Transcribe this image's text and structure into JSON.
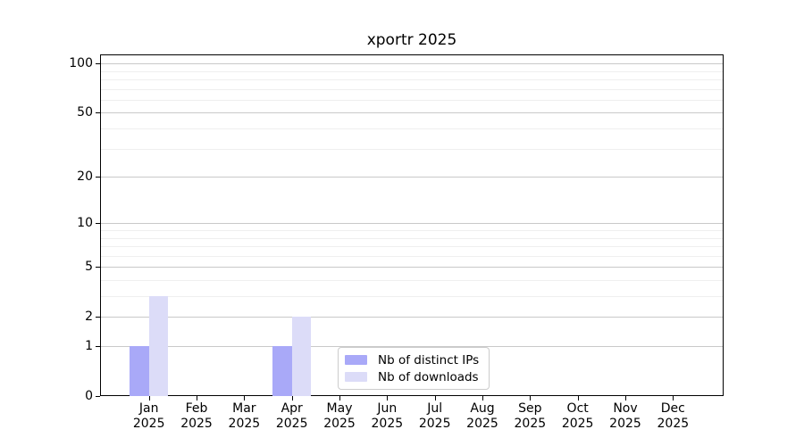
{
  "chart_data": {
    "type": "bar",
    "title": "xportr 2025",
    "categories": [
      "Jan 2025",
      "Feb 2025",
      "Mar 2025",
      "Apr 2025",
      "May 2025",
      "Jun 2025",
      "Jul 2025",
      "Aug 2025",
      "Sep 2025",
      "Oct 2025",
      "Nov 2025",
      "Dec 2025"
    ],
    "series": [
      {
        "name": "Nb of distinct IPs",
        "color": "#a9a9f8",
        "values": [
          1,
          0,
          0,
          1,
          0,
          0,
          0,
          0,
          0,
          0,
          0,
          0
        ]
      },
      {
        "name": "Nb of downloads",
        "color": "#dcdcf8",
        "values": [
          3,
          0,
          0,
          2,
          0,
          0,
          0,
          0,
          0,
          0,
          0,
          0
        ]
      }
    ],
    "y_ticks": [
      0,
      1,
      2,
      5,
      10,
      20,
      50,
      100
    ],
    "y_scale": "log10(1+x)",
    "ylim": [
      0,
      113
    ],
    "xlabel": "",
    "ylabel": "",
    "grid": true,
    "legend_position": "inside-bottom-center"
  },
  "colors": {
    "major_grid": "#c9c9c9",
    "minor_grid": "#efefef",
    "spine": "#000000",
    "background": "#ffffff"
  }
}
